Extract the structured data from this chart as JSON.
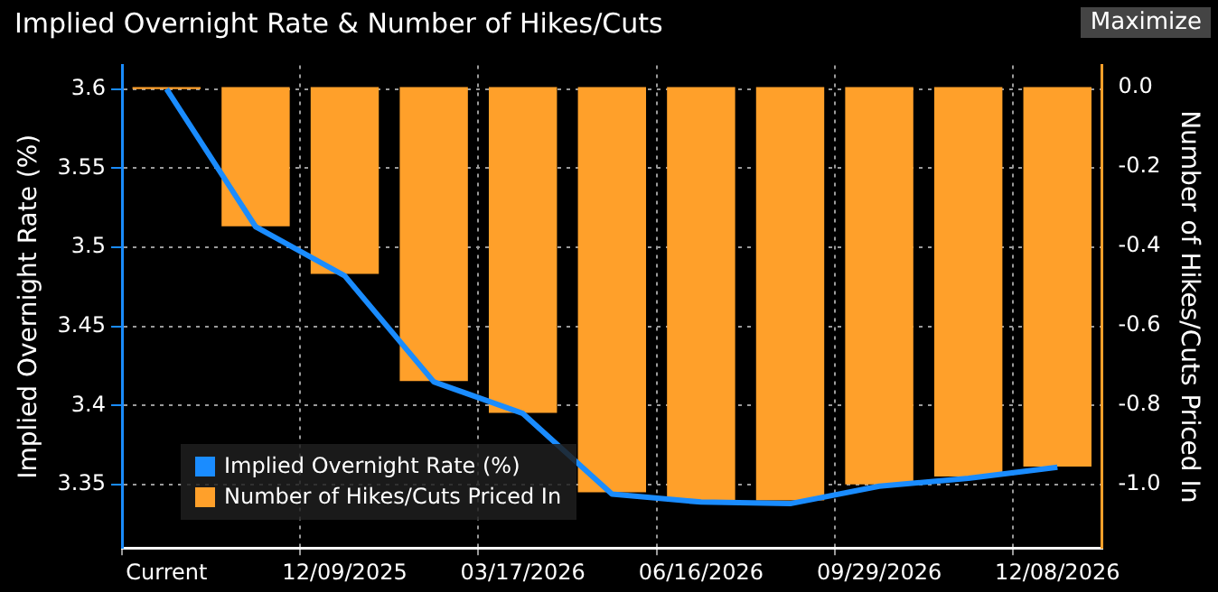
{
  "chart_data": {
    "type": "bar",
    "title": "Implied Overnight Rate & Number of Hikes/Cuts",
    "annotations": [
      "Maximize"
    ],
    "categories": [
      "Current",
      null,
      "12/09/2025",
      null,
      "03/17/2026",
      null,
      "06/16/2026",
      null,
      "09/29/2026",
      null,
      "12/08/2026"
    ],
    "series": [
      {
        "name": "Implied Overnight Rate (%)",
        "type": "line",
        "color": "#1a8cff",
        "values": [
          3.6,
          3.513,
          3.482,
          3.415,
          3.395,
          3.344,
          3.339,
          3.338,
          3.349,
          3.354,
          3.361
        ]
      },
      {
        "name": "Number of Hikes/Cuts Priced In",
        "axis": "y2",
        "color": "#ffa02a",
        "values": [
          -0.005,
          -0.35,
          -0.47,
          -0.74,
          -0.82,
          -1.02,
          -1.04,
          -1.04,
          -1.0,
          -0.98,
          -0.955
        ]
      }
    ],
    "ylabel": "Implied Overnight Rate (%)",
    "y2label": "Number of Hikes/Cuts Priced In",
    "ylim": [
      3.31,
      3.615
    ],
    "yticks": [
      3.35,
      3.4,
      3.45,
      3.5,
      3.55,
      3.6
    ],
    "y2lim": [
      -1.16,
      0.055
    ],
    "y2ticks": [
      {
        "value": -1.0,
        "label": "-1.0"
      },
      {
        "value": -0.8,
        "label": "-0.8"
      },
      {
        "value": -0.6,
        "label": "-0.6"
      },
      {
        "value": -0.4,
        "label": "-0.4"
      },
      {
        "value": -0.2,
        "label": "-0.2"
      },
      {
        "value": 0,
        "label": "0.0"
      }
    ],
    "grid": true,
    "legend": "bottom left",
    "marker": "none",
    "line_style": "solid"
  }
}
